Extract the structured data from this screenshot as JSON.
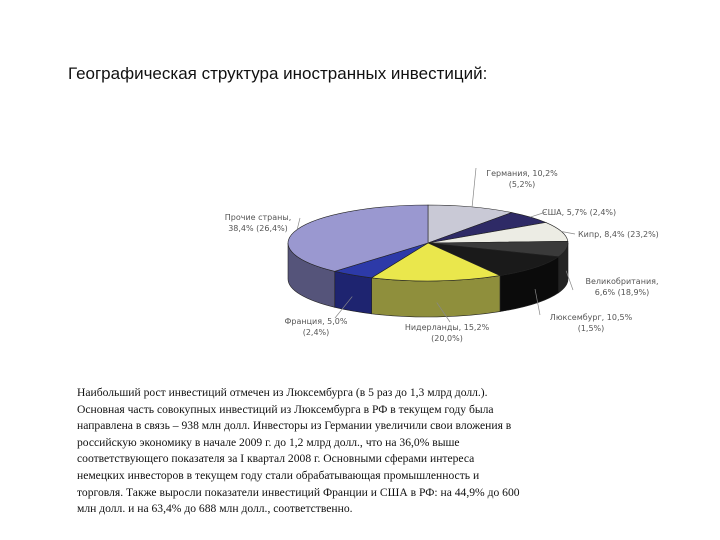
{
  "title": "Географическая структура иностранных инвестиций:",
  "chart_data": {
    "type": "pie",
    "title": "",
    "slices": [
      {
        "label_line1": "Германия, 10,2%",
        "label_line2": "(5,2%)",
        "value": 10.2,
        "top_color": "#c9c9d6",
        "side_color": "#8e8e9c"
      },
      {
        "label_line1": "США, 5,7% (2,4%)",
        "label_line2": "",
        "value": 5.7,
        "top_color": "#2e2a66",
        "side_color": "#1c1a44"
      },
      {
        "label_line1": "Кипр, 8,4% (23,2%)",
        "label_line2": "",
        "value": 8.4,
        "top_color": "#ecece4",
        "side_color": "#b8b8ad"
      },
      {
        "label_line1": "Великобритания,",
        "label_line2": "6,6% (18,9%)",
        "value": 6.6,
        "top_color": "#3a3a3a",
        "side_color": "#232323"
      },
      {
        "label_line1": "Люксембург, 10,5%",
        "label_line2": "(1,5%)",
        "value": 10.5,
        "top_color": "#1a1a1a",
        "side_color": "#0b0b0b"
      },
      {
        "label_line1": "Нидерланды, 15,2%",
        "label_line2": "(20,0%)",
        "value": 15.2,
        "top_color": "#eae74c",
        "side_color": "#8f8f3c"
      },
      {
        "label_line1": "Франция, 5,0%",
        "label_line2": "(2,4%)",
        "value": 5.0,
        "top_color": "#2d3aa8",
        "side_color": "#1e2470"
      },
      {
        "label_line1": "Прочие страны,",
        "label_line2": "38,4% (26,4%)",
        "value": 38.4,
        "top_color": "#9a98d0",
        "side_color": "#55547a"
      }
    ]
  },
  "body_lines": [
    "Наибольший рост инвестиций отмечен из Люксембурга (в 5 раз до 1,3 млрд долл.).",
    "Основная часть совокупных инвестиций из Люксембурга в РФ в текущем году была",
    "направлена в связь – 938 млн долл. Инвесторы из Германии увеличили свои вложения в",
    "российскую экономику в начале 2009 г. до 1,2 млрд долл., что на 36,0% выше",
    "соответствующего показателя за I квартал 2008 г. Основными сферами интереса",
    "немецких инвесторов в текущем году стали обрабатывающая промышленность и",
    "торговля. Также выросли показатели инвестиций Франции и США в РФ: на 44,9% до 600",
    "млн долл. и на 63,4% до 688 млн долл., соответственно."
  ]
}
